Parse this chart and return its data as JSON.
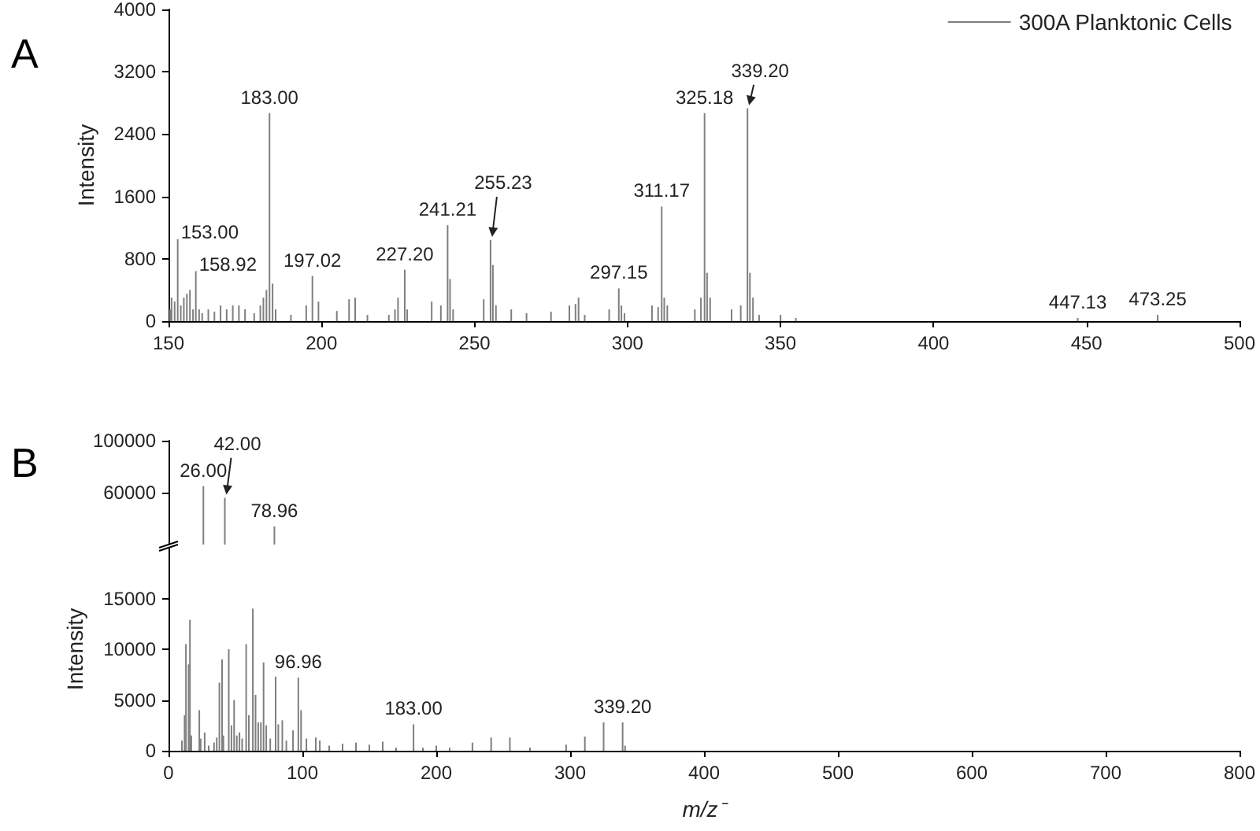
{
  "chart_data": [
    {
      "type": "bar",
      "title": "A",
      "ylabel": "Intensity",
      "legend": "top right",
      "x": [
        150.5,
        151,
        152,
        153,
        154,
        155,
        156,
        157,
        158,
        158.92,
        160,
        161,
        163,
        165,
        167,
        169,
        171,
        173,
        175,
        178,
        180,
        181,
        182,
        183,
        184,
        185,
        190,
        195,
        197.02,
        199,
        205,
        209,
        211,
        215,
        222,
        224,
        225,
        227.2,
        228,
        236,
        239,
        241.21,
        242,
        243,
        253,
        255.23,
        256,
        257,
        262,
        267,
        275,
        281,
        283,
        284,
        286,
        294,
        297.15,
        298,
        299,
        308,
        310,
        311.17,
        312,
        313,
        322,
        324,
        325.18,
        326,
        327,
        334,
        337,
        339.2,
        340,
        341,
        343,
        350,
        355,
        447.13,
        473.25
      ],
      "series": [
        {
          "name": "300A Planktonic Cells",
          "color": "#7f7f7f",
          "values": [
            150,
            300,
            250,
            1050,
            200,
            300,
            350,
            400,
            150,
            640,
            150,
            100,
            150,
            120,
            200,
            150,
            200,
            200,
            150,
            100,
            200,
            300,
            400,
            2670,
            480,
            150,
            80,
            200,
            580,
            250,
            130,
            280,
            300,
            80,
            80,
            150,
            300,
            660,
            150,
            250,
            200,
            1230,
            540,
            150,
            280,
            1040,
            720,
            200,
            150,
            100,
            120,
            200,
            220,
            300,
            80,
            150,
            420,
            200,
            100,
            200,
            180,
            1470,
            300,
            200,
            150,
            300,
            2670,
            620,
            300,
            150,
            200,
            2730,
            620,
            300,
            80,
            80,
            40,
            40,
            80
          ]
        }
      ],
      "xlim": [
        150,
        500
      ],
      "xticks": [
        150,
        200,
        250,
        300,
        350,
        400,
        450,
        500
      ],
      "ylim": [
        0,
        4000
      ],
      "yticks": [
        0,
        800,
        1600,
        2400,
        3200,
        4000
      ],
      "annotations": [
        {
          "text": "153.00",
          "x": 153,
          "y": 1050
        },
        {
          "text": "158.92",
          "x": 158.92,
          "y": 640
        },
        {
          "text": "183.00",
          "x": 183,
          "y": 2670
        },
        {
          "text": "197.02",
          "x": 197.02,
          "y": 580
        },
        {
          "text": "227.20",
          "x": 227.2,
          "y": 660
        },
        {
          "text": "241.21",
          "x": 241.21,
          "y": 1230
        },
        {
          "text": "255.23",
          "x": 255.23,
          "y": 1040
        },
        {
          "text": "297.15",
          "x": 297.15,
          "y": 420
        },
        {
          "text": "311.17",
          "x": 311.17,
          "y": 1470
        },
        {
          "text": "325.18",
          "x": 325.18,
          "y": 2670
        },
        {
          "text": "339.20",
          "x": 339.2,
          "y": 2730
        },
        {
          "text": "447.13",
          "x": 447.13,
          "y": 40
        },
        {
          "text": "473.25",
          "x": 473.25,
          "y": 80
        }
      ]
    },
    {
      "type": "bar",
      "title": "B",
      "tick_labels": "y",
      "color": "#7f7f7f",
      "x": [
        26,
        42,
        78.96
      ],
      "values": [
        65000,
        56000,
        34000
      ],
      "xlim": [
        0,
        800
      ],
      "ylim": [
        20000,
        100000
      ],
      "yticks": [
        60000,
        100000
      ],
      "annotations": [
        {
          "text": "26.00",
          "x": 26,
          "y": 65000
        },
        {
          "text": "42.00",
          "x": 42,
          "y": 56000
        },
        {
          "text": "78.96",
          "x": 78.96,
          "y": 34000
        }
      ]
    },
    {
      "type": "bar",
      "ylabel": "Intensity",
      "xlabel": "m/z⁻",
      "color": "#7f7f7f",
      "x": [
        10,
        12,
        13,
        15,
        16,
        17,
        23,
        24,
        27,
        30,
        34,
        36,
        38,
        40,
        41,
        45,
        47,
        49,
        51,
        53,
        55,
        58,
        60,
        63,
        65,
        67,
        69,
        71,
        73,
        76,
        80,
        82,
        85,
        88,
        93,
        96.96,
        99,
        103,
        110,
        113,
        120,
        130,
        140,
        150,
        160,
        170,
        183,
        190,
        200,
        210,
        227,
        241,
        255,
        270,
        297,
        311,
        325,
        339.2,
        341
      ],
      "values": [
        1000,
        3500,
        10500,
        8500,
        12900,
        1500,
        4000,
        1200,
        1800,
        500,
        800,
        1300,
        6700,
        9000,
        1500,
        10000,
        2500,
        5000,
        1500,
        1800,
        1200,
        10500,
        3500,
        14000,
        5500,
        2800,
        2800,
        8700,
        2500,
        1200,
        7300,
        2600,
        3000,
        1000,
        2000,
        7200,
        4000,
        1200,
        1300,
        1000,
        500,
        700,
        800,
        600,
        900,
        300,
        2600,
        300,
        500,
        300,
        800,
        1300,
        1300,
        300,
        600,
        1400,
        2800,
        2800,
        500
      ],
      "xlim": [
        0,
        800
      ],
      "xticks": [
        0,
        100,
        200,
        300,
        400,
        500,
        600,
        700,
        800
      ],
      "ylim": [
        0,
        20000
      ],
      "yticks": [
        0,
        5000,
        10000,
        15000
      ],
      "annotations": [
        {
          "text": "96.96",
          "x": 96.96,
          "y": 7200
        },
        {
          "text": "183.00",
          "x": 183,
          "y": 2600
        },
        {
          "text": "339.20",
          "x": 339.2,
          "y": 2800
        }
      ]
    }
  ]
}
